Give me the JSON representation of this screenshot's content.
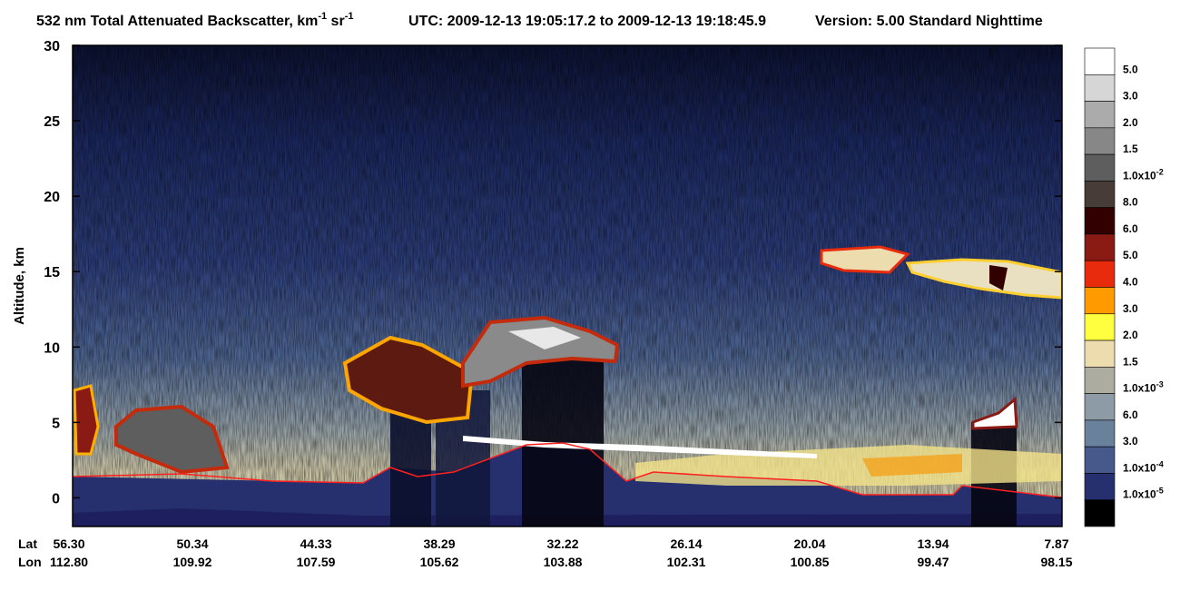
{
  "chart_data": {
    "type": "heatmap",
    "title": [
      "532 nm Total Attenuated Backscatter, km",
      "-1",
      " sr",
      "-1"
    ],
    "utc": "UTC:  2009-12-13 19:05:17.2  to  2009-12-13 19:18:45.9",
    "version": "Version: 5.00  Standard  Nighttime",
    "ylabel": "Altitude, km",
    "ylim": [
      -1.9,
      30
    ],
    "yticks": [
      0,
      5,
      10,
      15,
      20,
      25,
      30
    ],
    "x_rows": [
      {
        "name": "Lat",
        "labels": [
          "56.30",
          "50.34",
          "44.33",
          "38.29",
          "32.22",
          "26.14",
          "20.04",
          "13.94",
          "7.87"
        ]
      },
      {
        "name": "Lon",
        "labels": [
          "112.80",
          "109.92",
          "107.59",
          "105.62",
          "103.88",
          "102.31",
          "100.85",
          "99.47",
          "98.15"
        ]
      }
    ],
    "colorbar": {
      "colors": [
        "#ffffff",
        "#d6d6d6",
        "#ababab",
        "#878787",
        "#5e5e5e",
        "#473c38",
        "#330000",
        "#8a1a14",
        "#e82b0c",
        "#ff9a00",
        "#ffff40",
        "#ecdcae",
        "#adaca0",
        "#8d9ba6",
        "#6a819c",
        "#46598a",
        "#26306f",
        "#000000"
      ],
      "labels": [
        "5.0",
        "3.0",
        "2.0",
        "1.5",
        {
          "text": "1.0x10",
          "sup": "-2"
        },
        "8.0",
        "6.0",
        "5.0",
        "4.0",
        "3.0",
        "2.0",
        "1.5",
        {
          "text": "1.0x10",
          "sup": "-3"
        },
        "6.0",
        "3.0",
        {
          "text": "1.0x10",
          "sup": "-4"
        },
        {
          "text": "1.0x10",
          "sup": "-5"
        }
      ]
    }
  }
}
